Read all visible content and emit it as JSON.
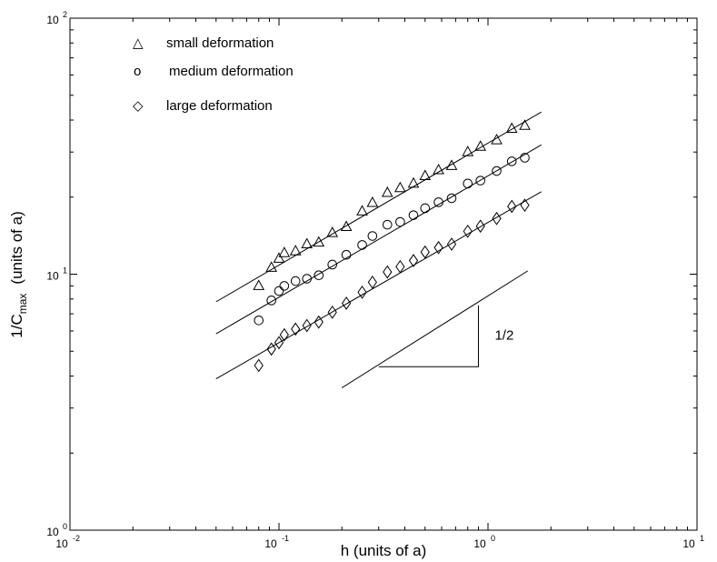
{
  "chart_data": {
    "type": "scatter",
    "x_scale": "log",
    "y_scale": "log",
    "xlim": [
      0.01,
      10
    ],
    "ylim": [
      1,
      100
    ],
    "xlabel": "h (units of a)",
    "ylabel": {
      "main": "1/C",
      "sub": "max",
      "units": "(units of a)"
    },
    "x_ticks": [
      {
        "value": 0.01,
        "base": "10",
        "exp": "-2"
      },
      {
        "value": 0.1,
        "base": "10",
        "exp": "-1"
      },
      {
        "value": 1,
        "base": "10",
        "exp": "0"
      },
      {
        "value": 10,
        "base": "10",
        "exp": "1"
      }
    ],
    "y_ticks": [
      {
        "value": 1,
        "base": "10",
        "exp": "0"
      },
      {
        "value": 10,
        "base": "10",
        "exp": "1"
      },
      {
        "value": 100,
        "base": "10",
        "exp": "2"
      }
    ],
    "grid": false,
    "legend_position": "top-left",
    "series": [
      {
        "name": "small deformation",
        "legend_symbol": "△",
        "marker": "triangle",
        "x": [
          0.08,
          0.092,
          0.1,
          0.106,
          0.12,
          0.136,
          0.155,
          0.18,
          0.21,
          0.25,
          0.28,
          0.33,
          0.38,
          0.44,
          0.5,
          0.58,
          0.67,
          0.8,
          0.92,
          1.1,
          1.3,
          1.5
        ],
        "y": [
          9.0,
          10.6,
          11.5,
          12.1,
          12.3,
          13.1,
          13.3,
          14.5,
          15.3,
          17.6,
          19.0,
          20.8,
          21.7,
          22.6,
          24.2,
          25.5,
          26.5,
          30.0,
          31.5,
          33.4,
          37.0,
          38.0
        ],
        "fit": {
          "x": [
            0.05,
            1.8
          ],
          "y": [
            7.8,
            43.0
          ]
        }
      },
      {
        "name": "medium deformation",
        "legend_symbol": "o",
        "marker": "circle",
        "x": [
          0.08,
          0.092,
          0.1,
          0.106,
          0.12,
          0.136,
          0.155,
          0.18,
          0.21,
          0.25,
          0.28,
          0.33,
          0.38,
          0.44,
          0.5,
          0.58,
          0.67,
          0.8,
          0.92,
          1.1,
          1.3,
          1.5
        ],
        "y": [
          6.6,
          7.9,
          8.6,
          9.0,
          9.4,
          9.6,
          9.9,
          10.9,
          11.9,
          13.0,
          14.1,
          15.6,
          16.0,
          17.0,
          18.1,
          19.1,
          19.8,
          22.6,
          23.2,
          25.3,
          27.6,
          28.5
        ],
        "fit": {
          "x": [
            0.05,
            1.8
          ],
          "y": [
            5.85,
            32.0
          ]
        }
      },
      {
        "name": "large deformation",
        "legend_symbol": "◇",
        "marker": "diamond",
        "x": [
          0.08,
          0.092,
          0.1,
          0.106,
          0.12,
          0.136,
          0.155,
          0.18,
          0.21,
          0.25,
          0.28,
          0.33,
          0.38,
          0.44,
          0.5,
          0.58,
          0.67,
          0.8,
          0.92,
          1.1,
          1.3,
          1.5
        ],
        "y": [
          4.4,
          5.1,
          5.4,
          5.8,
          6.1,
          6.3,
          6.5,
          7.1,
          7.7,
          8.5,
          9.3,
          10.2,
          10.7,
          11.3,
          12.2,
          12.7,
          13.1,
          14.7,
          15.4,
          16.5,
          18.4,
          18.6
        ],
        "fit": {
          "x": [
            0.05,
            1.8
          ],
          "y": [
            3.9,
            21.0
          ]
        }
      }
    ],
    "slope_guide": {
      "label": "1/2",
      "line": {
        "x": [
          0.2,
          1.55
        ],
        "y": [
          3.6,
          10.3
        ]
      },
      "triangle": {
        "x0": 0.3,
        "x1": 0.9,
        "y0": 4.35,
        "y1": 7.55
      }
    }
  }
}
